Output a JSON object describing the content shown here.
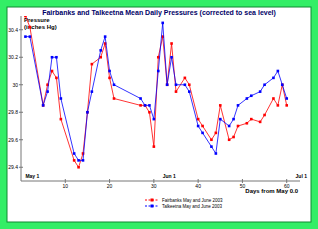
{
  "chart_data": {
    "type": "line",
    "title": "Fairbanks and Talkeetna Mean Daily Pressures (corrected to sea level)",
    "y_label": "Pressure (inches Hg)",
    "x_label": "Days from May 0.0",
    "x": [
      1,
      2,
      5,
      6,
      7,
      8,
      9,
      12,
      13,
      14,
      15,
      16,
      18,
      19,
      20,
      21,
      27,
      28,
      29,
      30,
      31,
      32,
      33,
      34,
      35,
      37,
      38,
      40,
      41,
      43,
      44,
      45,
      47,
      48,
      49,
      51,
      52,
      54,
      55,
      57,
      58,
      59,
      60
    ],
    "series": [
      {
        "name": "Fairbanks May and June 2003",
        "color": "#ff0000",
        "marker": "square",
        "line_style": "solid",
        "values": [
          30.5,
          30.42,
          29.85,
          30.0,
          30.1,
          30.05,
          29.75,
          29.45,
          29.4,
          29.5,
          29.8,
          30.15,
          30.2,
          30.3,
          30.05,
          29.9,
          29.85,
          29.85,
          29.8,
          29.55,
          30.2,
          30.35,
          30.0,
          30.3,
          29.95,
          30.05,
          30.0,
          29.75,
          29.7,
          29.6,
          29.65,
          29.85,
          29.6,
          29.62,
          29.7,
          29.72,
          29.75,
          29.73,
          29.78,
          29.9,
          29.85,
          30.0,
          29.85
        ]
      },
      {
        "name": "Talkeetna May and June 2003",
        "color": "#0000ff",
        "marker": "square",
        "line_style": "solid",
        "values": [
          30.35,
          30.35,
          29.85,
          29.95,
          30.2,
          30.2,
          29.9,
          29.5,
          29.45,
          29.45,
          29.8,
          29.95,
          30.25,
          30.35,
          30.1,
          30.0,
          29.9,
          29.85,
          29.85,
          29.75,
          30.1,
          30.45,
          30.0,
          30.2,
          30.0,
          30.0,
          29.95,
          29.7,
          29.65,
          29.55,
          29.5,
          29.75,
          29.7,
          29.75,
          29.85,
          29.9,
          29.92,
          29.95,
          30.0,
          30.05,
          30.1,
          30.0,
          29.9
        ]
      }
    ],
    "xlim": [
      0,
      63
    ],
    "xticks": [
      10,
      20,
      30,
      40,
      50,
      60
    ],
    "ylim": [
      29.3,
      30.5
    ],
    "yticks": [
      29.4,
      29.6,
      29.8,
      30,
      30.2,
      30.4
    ],
    "annotations": [
      {
        "x": 1,
        "text": "May 1"
      },
      {
        "x": 32,
        "text": "Jun 1"
      },
      {
        "x": 62,
        "text": "Jul 1"
      }
    ],
    "legend": "bottom",
    "grid": false
  }
}
